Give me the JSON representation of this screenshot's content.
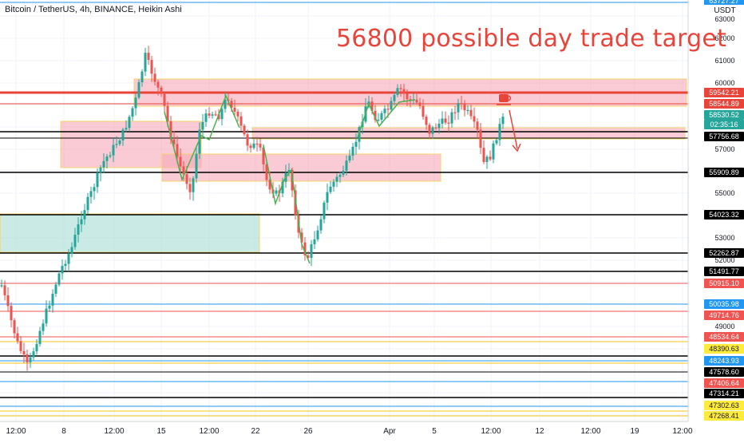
{
  "header": {
    "title": "Bitcoin / TetherUS, 4h, BINANCE, Heikin Ashi"
  },
  "annotation": {
    "text": "56800 possible day trade target",
    "color": "#e8443a"
  },
  "axis": {
    "currency": "USDT",
    "top_badge": "63727.27",
    "price_ticks": [
      "63000",
      "62000",
      "61000",
      "60000",
      "57000",
      "55000",
      "53000",
      "52000",
      "49000"
    ],
    "time_labels": [
      "12:00",
      "8",
      "12:00",
      "15",
      "12:00",
      "22",
      "26",
      "Apr",
      "5",
      "12:00",
      "12",
      "12:00",
      "19",
      "12:00"
    ]
  },
  "price_badges": [
    {
      "text": "59542.21",
      "bg": "#e8443a",
      "fg": "#ffffff"
    },
    {
      "text": "58544.89",
      "bg": "#e8443a",
      "fg": "#ffffff"
    },
    {
      "text": "58530.52",
      "bg": "#26a69a",
      "fg": "#ffffff"
    },
    {
      "text": "02:35:16",
      "bg": "#26a69a",
      "fg": "#ffffff"
    },
    {
      "text": "57756.68",
      "bg": "#000000",
      "fg": "#ffffff"
    },
    {
      "text": "55909.89",
      "bg": "#000000",
      "fg": "#ffffff"
    },
    {
      "text": "54023.32",
      "bg": "#000000",
      "fg": "#ffffff"
    },
    {
      "text": "52262.87",
      "bg": "#000000",
      "fg": "#ffffff"
    },
    {
      "text": "51491.77",
      "bg": "#000000",
      "fg": "#ffffff"
    },
    {
      "text": "50915.10",
      "bg": "#f05350",
      "fg": "#ffffff"
    },
    {
      "text": "50035.98",
      "bg": "#2196f3",
      "fg": "#ffffff"
    },
    {
      "text": "49714.76",
      "bg": "#f05350",
      "fg": "#ffffff"
    },
    {
      "text": "48534.64",
      "bg": "#f05350",
      "fg": "#ffffff"
    },
    {
      "text": "48390.63",
      "bg": "#ffeb3b",
      "fg": "#131722"
    },
    {
      "text": "48243.93",
      "bg": "#2196f3",
      "fg": "#ffffff"
    },
    {
      "text": "47578.60",
      "bg": "#000000",
      "fg": "#ffffff"
    },
    {
      "text": "47406.64",
      "bg": "#f05350",
      "fg": "#ffffff"
    },
    {
      "text": "47314.21",
      "bg": "#000000",
      "fg": "#ffffff"
    },
    {
      "text": "47302.63",
      "bg": "#ffeb3b",
      "fg": "#131722"
    },
    {
      "text": "47268.41",
      "bg": "#ffeb3b",
      "fg": "#131722"
    }
  ],
  "colors": {
    "up": "#26a69a",
    "down": "#ef5350",
    "grid": "#f0f3fa",
    "zone_red": "#f7a8b8",
    "zone_green": "#a6dcd3",
    "zone_border": "#f5d36b"
  }
}
